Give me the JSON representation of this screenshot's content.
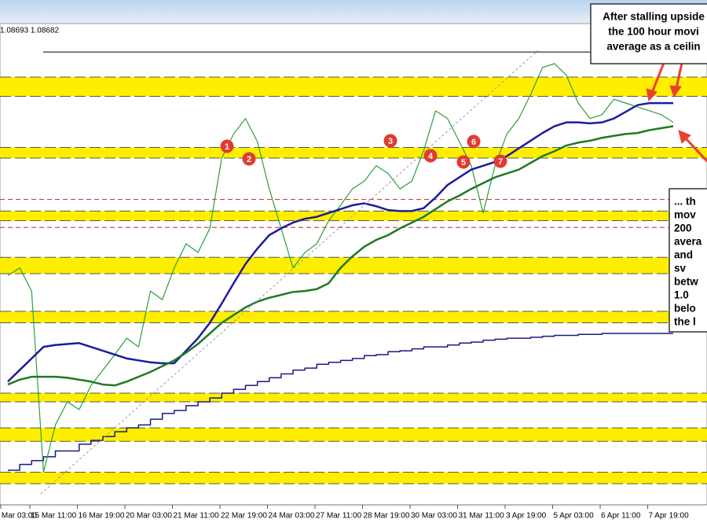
{
  "chart_data": {
    "type": "line",
    "quote": "1.08693 1.08682",
    "xlim": [
      -0.66,
      58.84
    ],
    "ylim": [
      1.0479,
      1.1029
    ],
    "xticks": [
      {
        "value": -0.6,
        "label": "Mar 03:00"
      },
      {
        "value": 1.85,
        "label": "15 Mar 11:00"
      },
      {
        "value": 5.85,
        "label": "16 Mar 19:00"
      },
      {
        "value": 9.85,
        "label": "20 Mar 03:00"
      },
      {
        "value": 13.85,
        "label": "21 Mar 11:00"
      },
      {
        "value": 17.85,
        "label": "22 Mar 19:00"
      },
      {
        "value": 21.85,
        "label": "24 Mar 03:00"
      },
      {
        "value": 25.85,
        "label": "27 Mar 11:00"
      },
      {
        "value": 29.85,
        "label": "28 Mar 19:00"
      },
      {
        "value": 33.85,
        "label": "30 Mar 03:00"
      },
      {
        "value": 37.85,
        "label": "31 Mar 11:00"
      },
      {
        "value": 41.85,
        "label": "3 Apr 19:00"
      },
      {
        "value": 45.85,
        "label": "5 Apr 03:00"
      },
      {
        "value": 49.85,
        "label": "6 Apr 11:00"
      },
      {
        "value": 53.85,
        "label": "7 Apr 19:00"
      }
    ],
    "zones": [
      [
        1.0929,
        1.0949
      ],
      [
        1.0865,
        1.0876
      ],
      [
        1.08,
        1.081
      ],
      [
        1.0745,
        1.0762
      ],
      [
        1.0694,
        1.0706
      ],
      [
        1.0612,
        1.0621
      ],
      [
        1.0571,
        1.0585
      ],
      [
        1.0527,
        1.0539
      ]
    ],
    "zone_color": "#ffee00",
    "levels": [
      {
        "value": 1.0975,
        "color": "#000000",
        "dashed": false
      },
      {
        "value": 1.0822,
        "color": "#cc2222",
        "dashed": true
      },
      {
        "value": 1.0793,
        "color": "#cc2222",
        "dashed": true
      }
    ],
    "series": [
      {
        "color": "#1a1a80",
        "width": 1.5,
        "step": true,
        "values": [
          1.0541,
          1.0547,
          1.0551,
          1.0555,
          1.0561,
          1.0561,
          1.0568,
          1.0572,
          1.0576,
          1.0581,
          1.0585,
          1.0588,
          1.0594,
          1.06,
          1.0603,
          1.0608,
          1.0612,
          1.0616,
          1.0621,
          1.0625,
          1.0629,
          1.0633,
          1.0637,
          1.0641,
          1.0645,
          1.0647,
          1.0651,
          1.0653,
          1.0655,
          1.0657,
          1.066,
          1.0661,
          1.0664,
          1.0665,
          1.0667,
          1.0669,
          1.0669,
          1.0671,
          1.0673,
          1.0674,
          1.0676,
          1.0677,
          1.0678,
          1.0678,
          1.0679,
          1.068,
          1.0681,
          1.0681,
          1.0682,
          1.0682,
          1.0683,
          1.0683,
          1.0683,
          1.0683,
          1.0683,
          1.0683,
          1.0683
        ]
      },
      {
        "color": "#2f9e3a",
        "width": 1.2,
        "step": false,
        "values": [
          1.0743,
          1.0751,
          1.0727,
          1.0539,
          1.0588,
          1.0612,
          1.0604,
          1.0629,
          1.0645,
          1.0661,
          1.0678,
          1.0669,
          1.0727,
          1.0718,
          1.0751,
          1.0776,
          1.0767,
          1.0792,
          1.0865,
          1.089,
          1.0906,
          1.0882,
          1.0833,
          1.0792,
          1.0751,
          1.0767,
          1.0776,
          1.08,
          1.0816,
          1.0833,
          1.0841,
          1.0857,
          1.0849,
          1.0833,
          1.0841,
          1.0873,
          1.0914,
          1.0906,
          1.0882,
          1.0857,
          1.0808,
          1.0857,
          1.089,
          1.0906,
          1.0931,
          1.0959,
          1.0963,
          1.0951,
          1.0922,
          1.0906,
          1.091,
          1.0926,
          1.0922,
          1.0918,
          1.0914,
          1.091,
          1.0902
        ]
      },
      {
        "color": "#1c1c9c",
        "width": 2.5,
        "step": false,
        "values": [
          1.0633,
          1.0645,
          1.0657,
          1.0669,
          1.0671,
          1.0672,
          1.0673,
          1.0669,
          1.0665,
          1.0661,
          1.0657,
          1.0655,
          1.0653,
          1.0652,
          1.0652,
          1.0665,
          1.0678,
          1.0694,
          1.0714,
          1.0735,
          1.0755,
          1.0771,
          1.0785,
          1.0792,
          1.0798,
          1.0802,
          1.0804,
          1.0808,
          1.0812,
          1.0816,
          1.0818,
          1.0815,
          1.0811,
          1.081,
          1.081,
          1.0813,
          1.0824,
          1.0837,
          1.0845,
          1.0853,
          1.0857,
          1.0861,
          1.0867,
          1.0875,
          1.0883,
          1.0891,
          1.0898,
          1.0902,
          1.0902,
          1.0901,
          1.0902,
          1.0906,
          1.0913,
          1.092,
          1.0922,
          1.0922,
          1.0922
        ]
      },
      {
        "color": "#1e7a22",
        "width": 2.5,
        "step": false,
        "values": [
          1.063,
          1.0635,
          1.0638,
          1.0638,
          1.0638,
          1.0637,
          1.0635,
          1.0633,
          1.063,
          1.0629,
          1.0633,
          1.0638,
          1.0643,
          1.0649,
          1.0655,
          1.0663,
          1.0672,
          1.0683,
          1.0694,
          1.0702,
          1.071,
          1.0716,
          1.072,
          1.0723,
          1.0726,
          1.0727,
          1.0729,
          1.0735,
          1.0751,
          1.0763,
          1.0773,
          1.078,
          1.0785,
          1.0792,
          1.0798,
          1.0804,
          1.0812,
          1.082,
          1.0826,
          1.0833,
          1.0839,
          1.0845,
          1.0849,
          1.0853,
          1.086,
          1.0867,
          1.0872,
          1.0878,
          1.0881,
          1.0883,
          1.0886,
          1.0888,
          1.089,
          1.0891,
          1.0894,
          1.0896,
          1.0898
        ]
      }
    ],
    "markers": [
      {
        "label": "1"
      },
      {
        "label": "2"
      },
      {
        "label": "3"
      },
      {
        "label": "4"
      },
      {
        "label": "5"
      },
      {
        "label": "6"
      },
      {
        "label": "7"
      }
    ],
    "notes": [
      {
        "lines": [
          "After stalling upside",
          "the 100 hour movi",
          "average as a ceilin"
        ]
      },
      {
        "lines": [
          "... th",
          "mov",
          "200",
          "avera",
          "and",
          "sv",
          "betw",
          "1.0",
          "belo",
          "the l"
        ]
      }
    ]
  }
}
